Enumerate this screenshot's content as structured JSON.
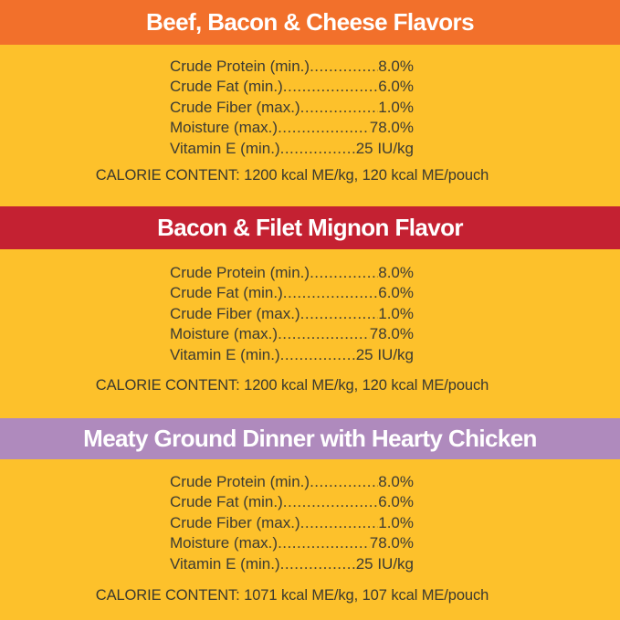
{
  "colors": {
    "background_yellow": "#fdc12b",
    "text_dark": "#3c3b33",
    "header_text": "#ffffff"
  },
  "sections": [
    {
      "id": "beef-bacon-cheese",
      "title": "Beef, Bacon & Cheese Flavors",
      "header_color": "#f2702b",
      "nutrients": [
        {
          "label": "Crude Protein (min.)",
          "value": "8.0%"
        },
        {
          "label": "Crude Fat (min.)",
          "value": "6.0%"
        },
        {
          "label": "Crude Fiber (max.)",
          "value": "1.0%"
        },
        {
          "label": "Moisture (max.)",
          "value": "78.0%"
        },
        {
          "label": "Vitamin E (min.)",
          "value": "25 IU/kg"
        }
      ],
      "calorie_content": "CALORIE CONTENT: 1200 kcal ME/kg, 120 kcal ME/pouch"
    },
    {
      "id": "bacon-filet-mignon",
      "title": "Bacon & Filet Mignon Flavor",
      "header_color": "#c42132",
      "nutrients": [
        {
          "label": "Crude Protein (min.)",
          "value": "8.0%"
        },
        {
          "label": "Crude Fat (min.)",
          "value": "6.0%"
        },
        {
          "label": "Crude Fiber (max.)",
          "value": "1.0%"
        },
        {
          "label": "Moisture (max.)",
          "value": "78.0%"
        },
        {
          "label": "Vitamin E (min.)",
          "value": "25 IU/kg"
        }
      ],
      "calorie_content": "CALORIE CONTENT: 1200 kcal ME/kg, 120 kcal ME/pouch"
    },
    {
      "id": "meaty-ground-dinner-chicken",
      "title": "Meaty Ground Dinner with Hearty Chicken",
      "header_color": "#af8abd",
      "nutrients": [
        {
          "label": "Crude Protein (min.)",
          "value": "8.0%"
        },
        {
          "label": "Crude Fat (min.)",
          "value": "6.0%"
        },
        {
          "label": "Crude Fiber (max.)",
          "value": "1.0%"
        },
        {
          "label": "Moisture (max.)",
          "value": "78.0%"
        },
        {
          "label": "Vitamin E (min.)",
          "value": "25 IU/kg"
        }
      ],
      "calorie_content": "CALORIE CONTENT: 1071 kcal ME/kg, 107 kcal ME/pouch"
    }
  ]
}
